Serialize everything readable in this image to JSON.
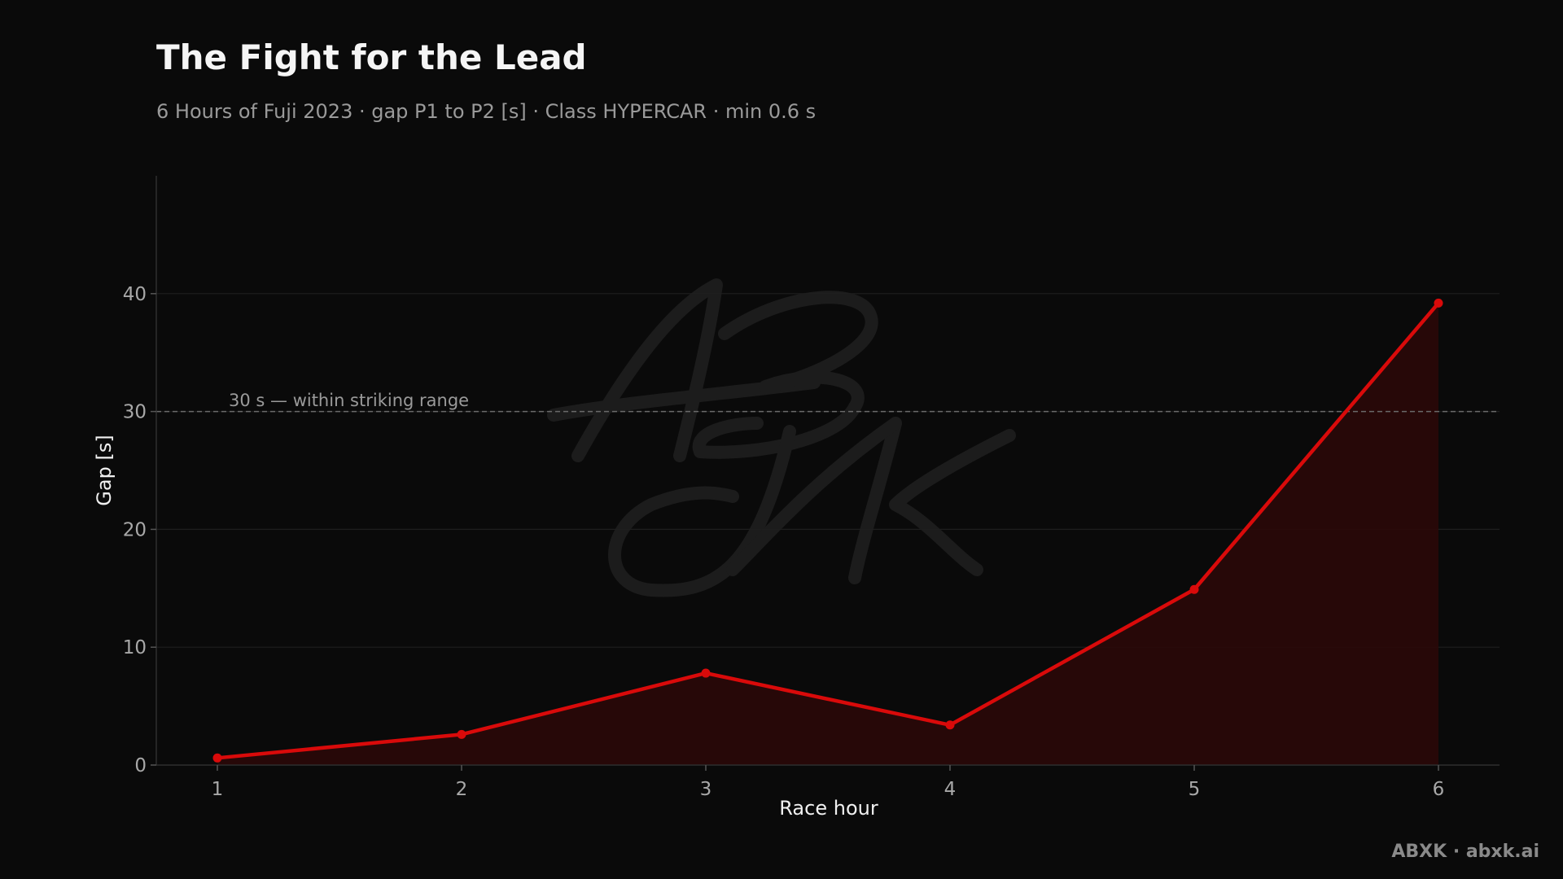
{
  "chart_data": {
    "type": "line",
    "title": "The Fight for the Lead",
    "subtitle": "6 Hours of Fuji 2023 · gap P1 to P2 [s] · Class HYPERCAR · min 0.6 s",
    "xlabel": "Race hour",
    "ylabel": "Gap [s]",
    "x": [
      1,
      2,
      3,
      4,
      5,
      6
    ],
    "series": [
      {
        "values": [
          0.6,
          2.6,
          7.8,
          3.4,
          14.9,
          39.2
        ],
        "color": "#d90a0a"
      }
    ],
    "xlim": [
      0.75,
      6.25
    ],
    "ylim": [
      0,
      50
    ],
    "xticks": [
      1,
      2,
      3,
      4,
      5,
      6
    ],
    "yticks": [
      0,
      10,
      20,
      30,
      40
    ],
    "grid": true,
    "fill_under": true,
    "reference_line": {
      "y": 30,
      "label": "30 s — within striking range"
    },
    "watermark": "ABXK",
    "credit": "ABXK · abxk.ai",
    "colors": {
      "background": "#0a0a0a",
      "line": "#d90a0a",
      "fill": "#2a0808",
      "grid": "#1e1e1e",
      "reference": "#6a6a6a"
    }
  }
}
